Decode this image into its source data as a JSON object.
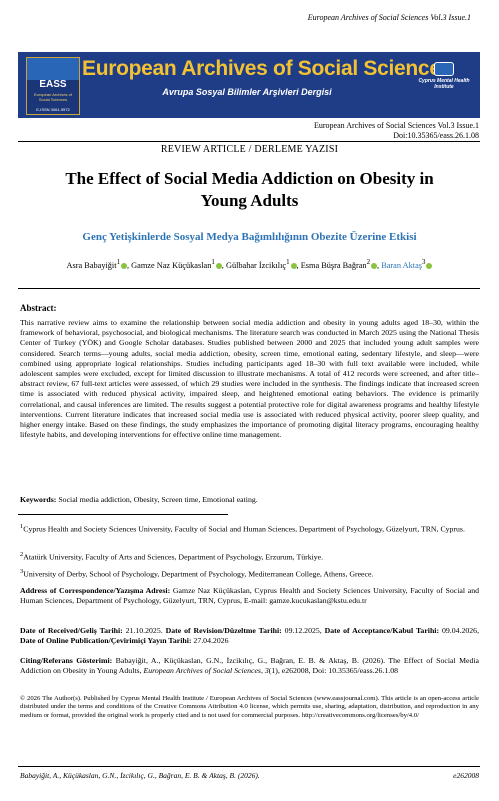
{
  "running_header": "European Archives of Social Sciences Vol.3 Issue.1",
  "banner": {
    "logo_text": "EASS",
    "logo_subtitle": "European Archives of Social Sciences",
    "logo_issn": "E-ISSN 3061-9572",
    "title": "European Archives of Social Sciences",
    "subtitle": "Avrupa Sosyal Bilimler Arşivleri Dergisi",
    "publisher": "Cyprus Mental Health Institute"
  },
  "journal_info": {
    "volume": "European Archives of Social Sciences Vol.3 Issue.1",
    "doi": "Doi:10.35365/eass.26.1.08"
  },
  "article_type": "REVIEW ARTICLE / DERLEME YAZISI",
  "title_line1": "The Effect of Social Media Addiction on Obesity in",
  "title_line2": "Young Adults",
  "subtitle_tr": "Genç Yetişkinlerde Sosyal Medya Bağımlılığının Obezite Üzerine Etkisi",
  "authors": [
    {
      "name": "Asra Babayiğit",
      "sup": "1"
    },
    {
      "name": "Gamze Naz Küçükaslan",
      "sup": "1"
    },
    {
      "name": "Gülbahar İzcikılıç",
      "sup": "1"
    },
    {
      "name": "Esma Büşra Bağran",
      "sup": "2"
    },
    {
      "name": "Baran Aktaş",
      "sup": "3"
    }
  ],
  "abstract_heading": "Abstract:",
  "abstract": "This narrative review aims to examine the relationship between social media addiction and obesity in young adults aged 18–30, within the framework of behavioral, psychosocial, and biological mechanisms. The literature search was conducted in March 2025 using the National Thesis Center of Turkey (YÖK) and Google Scholar databases. Studies published between 2000 and 2025 that included young adult samples were considered. Search terms—young adults, social media addiction, obesity, screen time, emotional eating, sedentary lifestyle, and sleep—were combined using appropriate logical relationships. Studies including participants aged 18–30 with full text available were included, while adolescent samples were excluded, except for limited discussion to illustrate mechanisms. A total of 412 records were screened, and after title–abstract review, 67 full-text articles were assessed, of which 29 studies were included in the synthesis. The findings indicate that increased screen time is associated with reduced physical activity, impaired sleep, and heightened emotional eating behaviors. The evidence is primarily correlational, and causal inferences are limited. The results suggest a potential protective role for digital awareness programs and healthy lifestyle interventions. Current literature indicates that increased social media use is associated with reduced physical activity, poorer sleep quality, and higher energy intake. Based on these findings, the study emphasizes the importance of promoting digital literacy programs, encouraging healthy lifestyle habits, and developing interventions for effective online time management.",
  "keywords_label": "Keywords:",
  "keywords": "Social media addiction, Obesity, Screen time, Emotional eating.",
  "affiliations": [
    {
      "sup": "1",
      "text": "Cyprus Health and Society Sciences University, Faculty of Social and Human Sciences, Department of Psychology, Güzelyurt, TRN, Cyprus."
    },
    {
      "sup": "2",
      "text": "Atatürk University, Faculty of Arts and Sciences, Department of Psychology, Erzurum, Türkiye."
    },
    {
      "sup": "3",
      "text": "University of Derby, School of Psychology, Department of Psychology, Mediterranean College, Athens, Greece."
    }
  ],
  "correspondence": {
    "label": "Address of Correspondence/Yazışma Adresi:",
    "text": "Gamze Naz Küçükaslan, Cyprus Health and Society Sciences University, Faculty of Social and Human Sciences, Department of Psychology, Güzelyurt, TRN, Cyprus, E-mail: gamze.kucukaslan@kstu.edu.tr"
  },
  "dates": {
    "received_label": "Date of Received/Geliş Tarihi:",
    "received": "21.10.2025.",
    "revision_label": "Date of Revision/Düzeltme Tarihi:",
    "revision": "09.12.2025,",
    "accepted_label": "Date of Acceptance/Kabul Tarihi:",
    "accepted": "09.04.2026,",
    "online_label": "Date of Online Publication/Çevirimiçi Yayın Tarihi:",
    "online": "27.04.2026"
  },
  "citation": {
    "label": "Citing/Referans Gösterimi:",
    "before": "Babayiğit, A., Küçükaslan, G.N., İzcikılıç, G., Bağran, E. B. & Aktaş, B. (2026). The Effect of Social Media Addiction on Obesity in Young Adults,",
    "journal": "European Archives of Social Sciences, 3",
    "after": "(1), e262008, Doi: 10.35365/eass.26.1.08"
  },
  "copyright": "© 2026 The Author(s). Published by Cyprus Mental Health Institute / European Archives of Social Sciences (www.eassjournal.com). This article is an open-access article distributed under the terms and conditions of the Creative Commons Attribution 4.0 license, which permits use, sharing, adaptation, distribution, and reproduction in any medium or format, provided the original work is properly cited and is not used for commercial purposes. http://creativecommons.org/licenses/by/4.0/",
  "footer": {
    "left": "Babayiğit, A., Küçükaslan, G.N., İzcikılıç, G., Bağran, E. B. & Aktaş, B. (2026).",
    "right": "e262008"
  },
  "colors": {
    "banner": "#1f3d86",
    "banner_title": "#f2c233",
    "accent": "#2e74b5",
    "orcid": "#8ac43f"
  }
}
